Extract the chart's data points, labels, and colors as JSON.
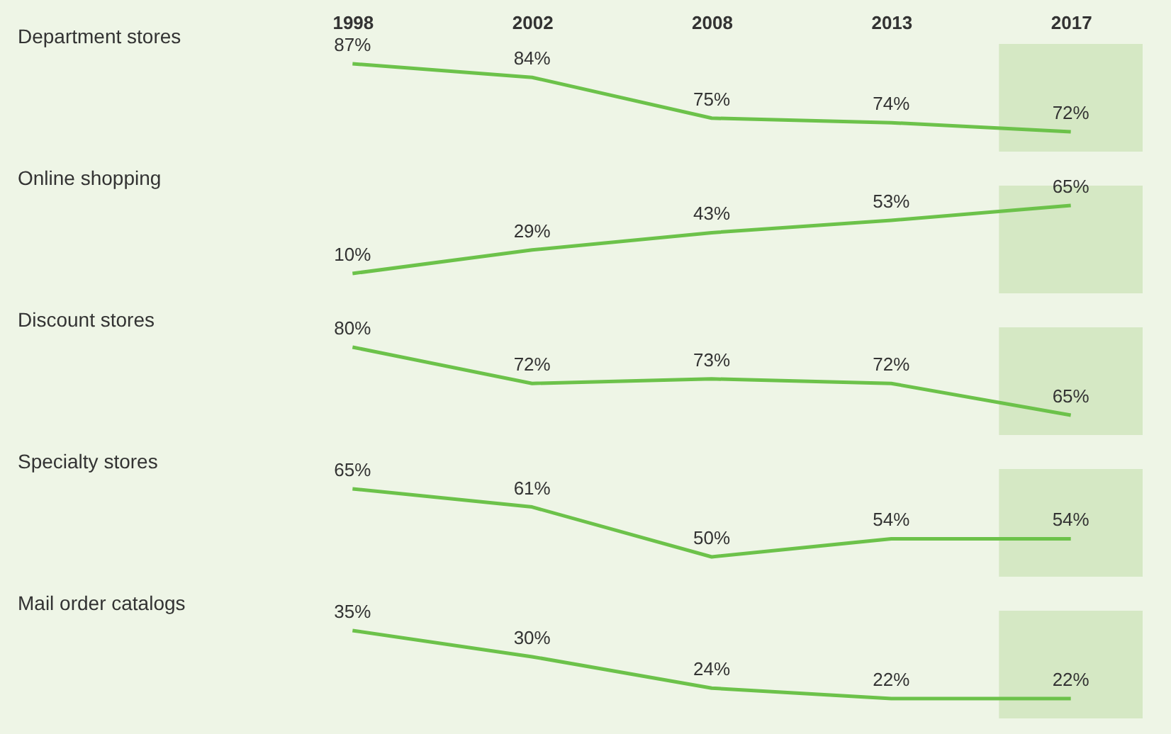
{
  "chart_data": [
    {
      "type": "line",
      "ylabel": "Department stores",
      "categories": [
        "1998",
        "2002",
        "2008",
        "2013",
        "2017"
      ],
      "values": [
        87,
        84,
        75,
        74,
        72
      ],
      "value_labels": [
        "87%",
        "84%",
        "75%",
        "74%",
        "72%"
      ],
      "color": "#6cc24a",
      "tick_labels": "x",
      "bands": [
        {
          "axis": "x",
          "from": "2017",
          "to": "2017",
          "color": "#d5e8c4"
        }
      ]
    },
    {
      "type": "line",
      "ylabel": "Online shopping",
      "categories": [
        "1998",
        "2002",
        "2008",
        "2013",
        "2017"
      ],
      "values": [
        10,
        29,
        43,
        53,
        65
      ],
      "value_labels": [
        "10%",
        "29%",
        "43%",
        "53%",
        "65%"
      ],
      "color": "#6cc24a",
      "tick_labels": false,
      "bands": [
        {
          "axis": "x",
          "from": "2017",
          "to": "2017",
          "color": "#d5e8c4"
        }
      ]
    },
    {
      "type": "line",
      "ylabel": "Discount stores",
      "categories": [
        "1998",
        "2002",
        "2008",
        "2013",
        "2017"
      ],
      "values": [
        80,
        72,
        73,
        72,
        65
      ],
      "value_labels": [
        "80%",
        "72%",
        "73%",
        "72%",
        "65%"
      ],
      "color": "#6cc24a",
      "tick_labels": false,
      "bands": [
        {
          "axis": "x",
          "from": "2017",
          "to": "2017",
          "color": "#d5e8c4"
        }
      ]
    },
    {
      "type": "line",
      "ylabel": "Specialty stores",
      "categories": [
        "1998",
        "2002",
        "2008",
        "2013",
        "2017"
      ],
      "values": [
        65,
        61,
        50,
        54,
        54
      ],
      "value_labels": [
        "65%",
        "61%",
        "50%",
        "54%",
        "54%"
      ],
      "color": "#6cc24a",
      "tick_labels": false,
      "bands": [
        {
          "axis": "x",
          "from": "2017",
          "to": "2017",
          "color": "#d5e8c4"
        }
      ]
    },
    {
      "type": "line",
      "ylabel": "Mail order catalogs",
      "categories": [
        "1998",
        "2002",
        "2008",
        "2013",
        "2017"
      ],
      "values": [
        35,
        30,
        24,
        22,
        22
      ],
      "value_labels": [
        "35%",
        "30%",
        "24%",
        "22%",
        "22%"
      ],
      "color": "#6cc24a",
      "tick_labels": false,
      "bands": [
        {
          "axis": "x",
          "from": "2017",
          "to": "2017",
          "color": "#d5e8c4"
        }
      ]
    }
  ]
}
